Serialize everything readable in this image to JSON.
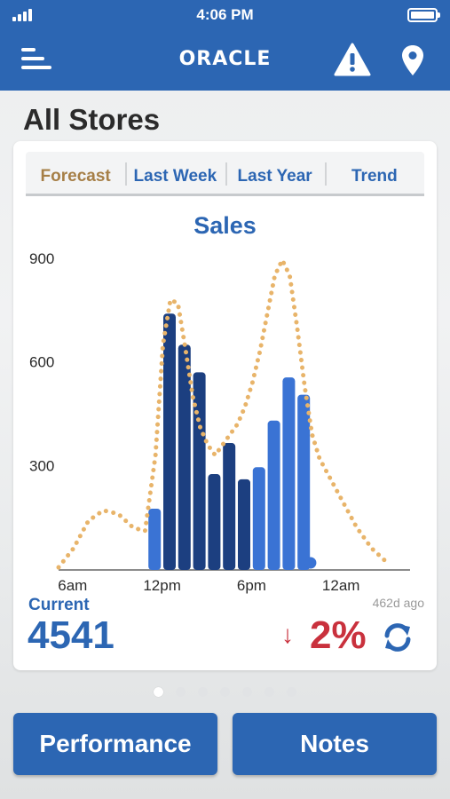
{
  "status_bar": {
    "time": "4:06 PM"
  },
  "nav": {
    "brand": "ORACLE",
    "icons": {
      "menu": "menu-icon",
      "alert": "warning-icon",
      "location": "location-pin-icon"
    }
  },
  "page": {
    "title": "All Stores"
  },
  "tabs": [
    {
      "label": "Forecast",
      "active": true
    },
    {
      "label": "Last Week",
      "active": false
    },
    {
      "label": "Last Year",
      "active": false
    },
    {
      "label": "Trend",
      "active": false
    }
  ],
  "summary": {
    "current_label": "Current",
    "current_value": "4541",
    "updated": "462d ago",
    "change_arrow": "↓",
    "change_value": "2%"
  },
  "pager": {
    "pages": 7,
    "current": 1
  },
  "buttons": {
    "performance": "Performance",
    "notes": "Notes"
  },
  "colors": {
    "brand_blue": "#2c66b3",
    "bar_light": "#3a73d4",
    "bar_dark": "#1c3f80",
    "forecast_dots": "#e8b46a",
    "forecast_tab": "#a67f47",
    "negative": "#c9313d"
  },
  "chart_data": {
    "type": "bar",
    "title": "Sales",
    "x_ticks": [
      "6am",
      "12pm",
      "6pm",
      "12am"
    ],
    "y_ticks": [
      "900",
      "600",
      "300"
    ],
    "ylim": [
      0,
      900
    ],
    "grid": false,
    "series": [
      {
        "type": "bar",
        "hours": [
          11,
          12,
          13,
          14,
          15,
          16,
          17,
          18,
          19,
          20,
          21
        ],
        "values": [
          175,
          740,
          650,
          570,
          275,
          365,
          260,
          295,
          430,
          555,
          505
        ],
        "emphasis": [
          false,
          true,
          true,
          true,
          true,
          true,
          true,
          false,
          false,
          false,
          false
        ]
      },
      {
        "type": "point",
        "hours": [
          21.9
        ],
        "values": [
          30
        ]
      },
      {
        "type": "line",
        "style": "dotted",
        "hours": [
          5,
          6,
          7,
          8,
          9,
          10,
          10.8,
          11.5,
          12,
          12.5,
          13,
          13.5,
          14,
          14.5,
          15,
          15.5,
          16,
          16.5,
          17,
          17.5,
          18,
          18.5,
          19,
          19.5,
          20,
          20.5,
          21,
          21.5,
          22,
          22.5,
          23,
          24,
          25,
          26,
          27
        ],
        "values": [
          5,
          60,
          140,
          170,
          160,
          120,
          110,
          330,
          650,
          780,
          770,
          640,
          500,
          410,
          360,
          330,
          360,
          390,
          420,
          470,
          540,
          630,
          740,
          850,
          895,
          850,
          700,
          530,
          390,
          320,
          280,
          200,
          120,
          60,
          20
        ]
      }
    ]
  }
}
